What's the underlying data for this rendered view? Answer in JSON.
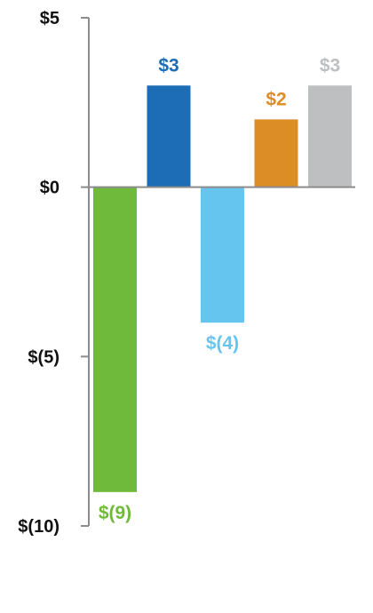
{
  "chart_data": {
    "type": "bar",
    "title": "",
    "xlabel": "",
    "ylabel": "",
    "ylim": [
      -10,
      5
    ],
    "yticks": [
      5,
      0,
      -5,
      -10
    ],
    "ytick_labels": [
      "$5",
      "$0",
      "$(5)",
      "$(10)"
    ],
    "categories": [
      "",
      "",
      "",
      "",
      ""
    ],
    "values": [
      -9,
      3,
      -4,
      2,
      3
    ],
    "data_labels": [
      "$(9)",
      "$3",
      "$(4)",
      "$2",
      "$3"
    ],
    "colors": [
      "#6fba3a",
      "#1c6db5",
      "#66c5ef",
      "#dc8d26",
      "#bdbfc1"
    ],
    "label_colors": [
      "#6fba3a",
      "#1c6db5",
      "#66c5ef",
      "#dc8d26",
      "#bdbfc1"
    ],
    "axis_color": "#8c8c8c",
    "grid": false,
    "legend": "none"
  }
}
